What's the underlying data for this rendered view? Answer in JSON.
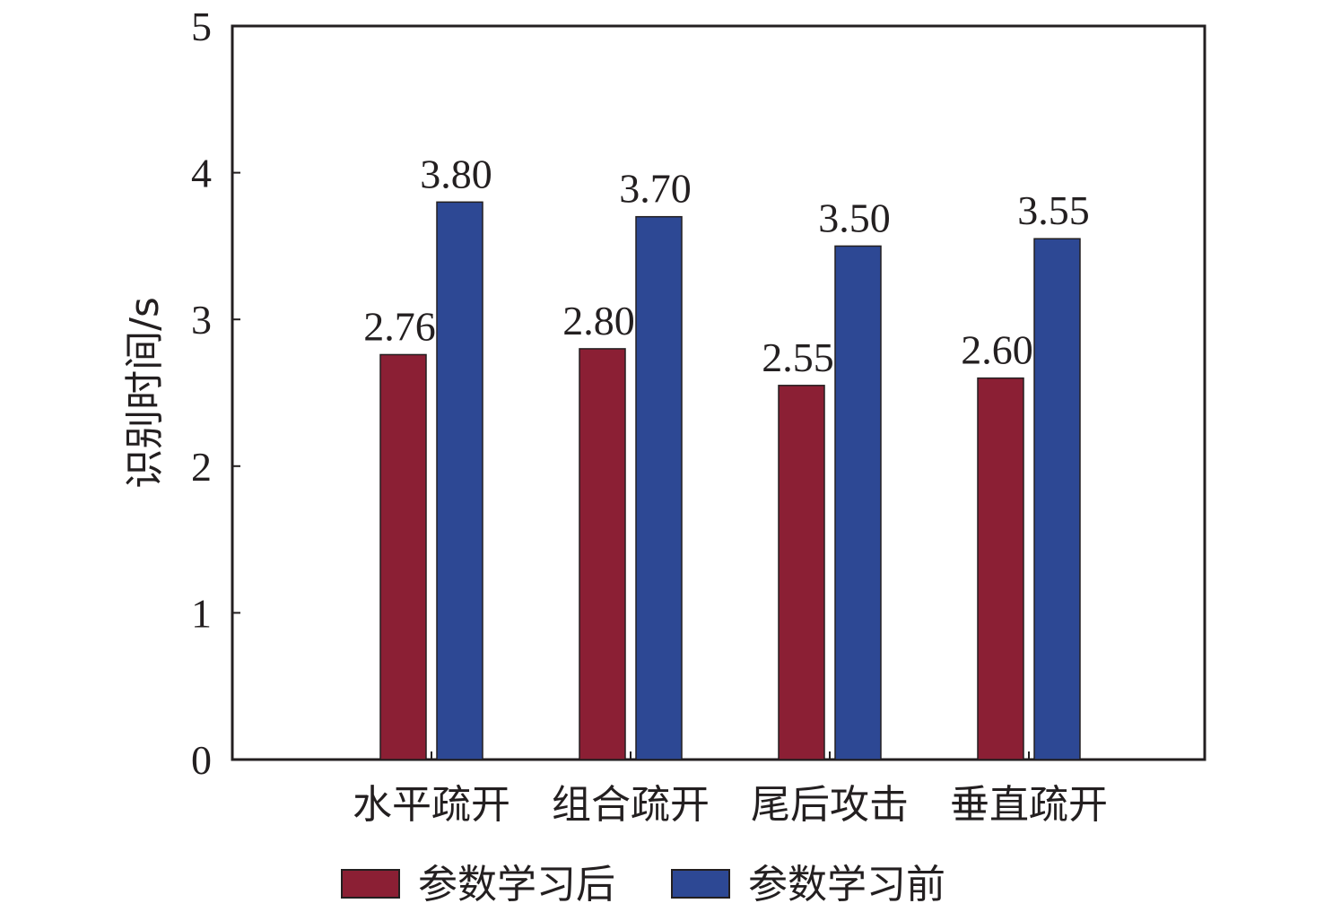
{
  "chart_data": {
    "type": "bar",
    "categories": [
      "水平疏开",
      "组合疏开",
      "尾后攻击",
      "垂直疏开"
    ],
    "series": [
      {
        "name": "参数学习后",
        "values": [
          2.76,
          2.8,
          2.55,
          2.6
        ],
        "color": "#8b1f34"
      },
      {
        "name": "参数学习前",
        "values": [
          3.8,
          3.7,
          3.5,
          3.55
        ],
        "color": "#2d4894"
      }
    ],
    "value_labels": [
      [
        "2.76",
        "2.80",
        "2.55",
        "2.60"
      ],
      [
        "3.80",
        "3.70",
        "3.50",
        "3.55"
      ]
    ],
    "ylabel": "识别时间/s",
    "xlabel": "",
    "ylim": [
      0,
      5
    ],
    "yticks": [
      "0",
      "1",
      "2",
      "3",
      "4",
      "5"
    ],
    "grid": false,
    "legend_position": "bottom"
  }
}
